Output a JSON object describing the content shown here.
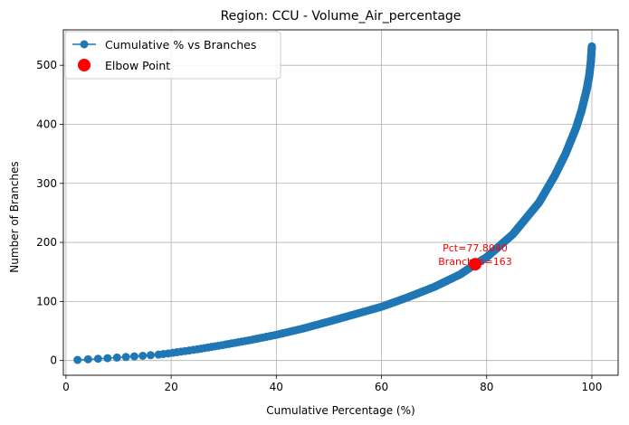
{
  "chart_data": {
    "type": "line",
    "title": "Region: CCU - Volume_Air_percentage",
    "xlabel": "Cumulative Percentage (%)",
    "ylabel": "Number of Branches",
    "xlim": [
      -0.5,
      105
    ],
    "ylim": [
      -25,
      560
    ],
    "xticks": [
      0,
      20,
      40,
      60,
      80,
      100
    ],
    "yticks": [
      0,
      100,
      200,
      300,
      400,
      500
    ],
    "grid": true,
    "legend_position": "top-left",
    "legend": [
      "Cumulative % vs Branches",
      "Elbow Point"
    ],
    "series": [
      {
        "name": "Cumulative % vs Branches",
        "color": "#1f77b4",
        "marker": "circle",
        "total_points": 532,
        "x_at_first_point": 2.2,
        "points": [
          [
            2.2,
            1
          ],
          [
            4.2,
            2
          ],
          [
            6.1,
            3
          ],
          [
            7.9,
            4
          ],
          [
            9.7,
            5
          ],
          [
            11.4,
            6
          ],
          [
            13.0,
            7
          ],
          [
            14.6,
            8
          ],
          [
            16.1,
            9
          ],
          [
            17.6,
            10
          ],
          [
            20,
            12.6
          ],
          [
            25,
            19
          ],
          [
            30,
            26.5
          ],
          [
            35,
            34.5
          ],
          [
            40,
            43.5
          ],
          [
            45,
            54
          ],
          [
            50,
            66
          ],
          [
            55,
            78.5
          ],
          [
            60,
            91
          ],
          [
            65,
            107
          ],
          [
            70,
            124.5
          ],
          [
            75,
            146
          ],
          [
            77.8,
            163
          ],
          [
            80,
            175
          ],
          [
            85,
            214
          ],
          [
            90,
            268
          ],
          [
            93,
            314
          ],
          [
            95,
            350
          ],
          [
            97,
            394
          ],
          [
            98,
            422
          ],
          [
            99,
            458
          ],
          [
            99.5,
            482
          ],
          [
            99.8,
            505
          ],
          [
            100,
            532
          ]
        ]
      }
    ],
    "elbow_point": {
      "name": "Elbow Point",
      "x": 77.804,
      "y": 163,
      "color": "#ff0000",
      "annotation_line1": "Pct=77.8040",
      "annotation_line2": "Branches=163"
    }
  }
}
